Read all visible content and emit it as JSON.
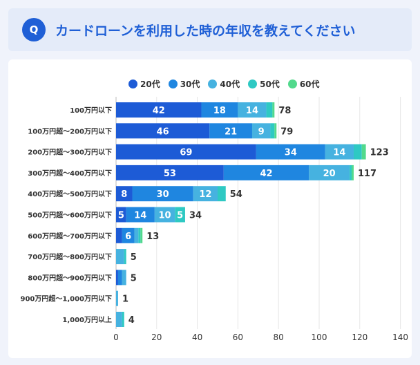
{
  "header": {
    "badge": "Q",
    "title": "カードローンを利用した時の年収を教えてください"
  },
  "colors": {
    "series": [
      "#1d5bd6",
      "#1f86e0",
      "#46b2e0",
      "#2ec9c3",
      "#52d98c"
    ],
    "grid": "#e6e6e6",
    "text": "#333333"
  },
  "chart_data": {
    "type": "bar",
    "orientation": "horizontal",
    "stacked": true,
    "categories": [
      "100万円以下",
      "100万円超〜200万円以下",
      "200万円超〜300万円以下",
      "300万円超〜400万円以下",
      "400万円超〜500万円以下",
      "500万円超〜600万円以下",
      "600万円超〜700万円以下",
      "700万円超〜800万円以下",
      "800万円超〜900万円以下",
      "900万円超〜1,000万円以下",
      "1,000万円以上"
    ],
    "series": [
      {
        "name": "20代",
        "values": [
          42,
          46,
          69,
          53,
          8,
          5,
          3,
          0,
          1,
          0,
          0
        ]
      },
      {
        "name": "30代",
        "values": [
          18,
          21,
          34,
          42,
          30,
          14,
          6,
          0,
          2,
          0,
          0
        ]
      },
      {
        "name": "40代",
        "values": [
          14,
          9,
          14,
          20,
          12,
          10,
          2,
          4,
          2,
          1,
          3
        ]
      },
      {
        "name": "50代",
        "values": [
          3,
          2,
          4,
          1,
          4,
          5,
          1,
          1,
          0,
          0,
          1
        ]
      },
      {
        "name": "60代",
        "values": [
          1,
          1,
          2,
          1,
          0,
          0,
          1,
          0,
          0,
          0,
          0
        ]
      }
    ],
    "totals": [
      78,
      79,
      123,
      117,
      54,
      34,
      13,
      5,
      5,
      1,
      4
    ],
    "segment_labels": [
      [
        "42",
        "18",
        "14",
        "",
        ""
      ],
      [
        "46",
        "21",
        "9",
        "",
        ""
      ],
      [
        "69",
        "34",
        "14",
        "",
        ""
      ],
      [
        "53",
        "42",
        "20",
        "",
        ""
      ],
      [
        "8",
        "30",
        "12",
        "",
        ""
      ],
      [
        "5",
        "14",
        "10",
        "5",
        ""
      ],
      [
        "",
        "6",
        "",
        "",
        ""
      ],
      [
        "",
        "",
        "",
        "",
        ""
      ],
      [
        "",
        "",
        "",
        "",
        ""
      ],
      [
        "",
        "",
        "",
        "",
        ""
      ],
      [
        "",
        "",
        "",
        "",
        ""
      ]
    ],
    "xlim": [
      0,
      140
    ],
    "xticks": [
      0,
      20,
      40,
      60,
      80,
      100,
      120,
      140
    ],
    "grid": true,
    "legend_position": "top"
  }
}
